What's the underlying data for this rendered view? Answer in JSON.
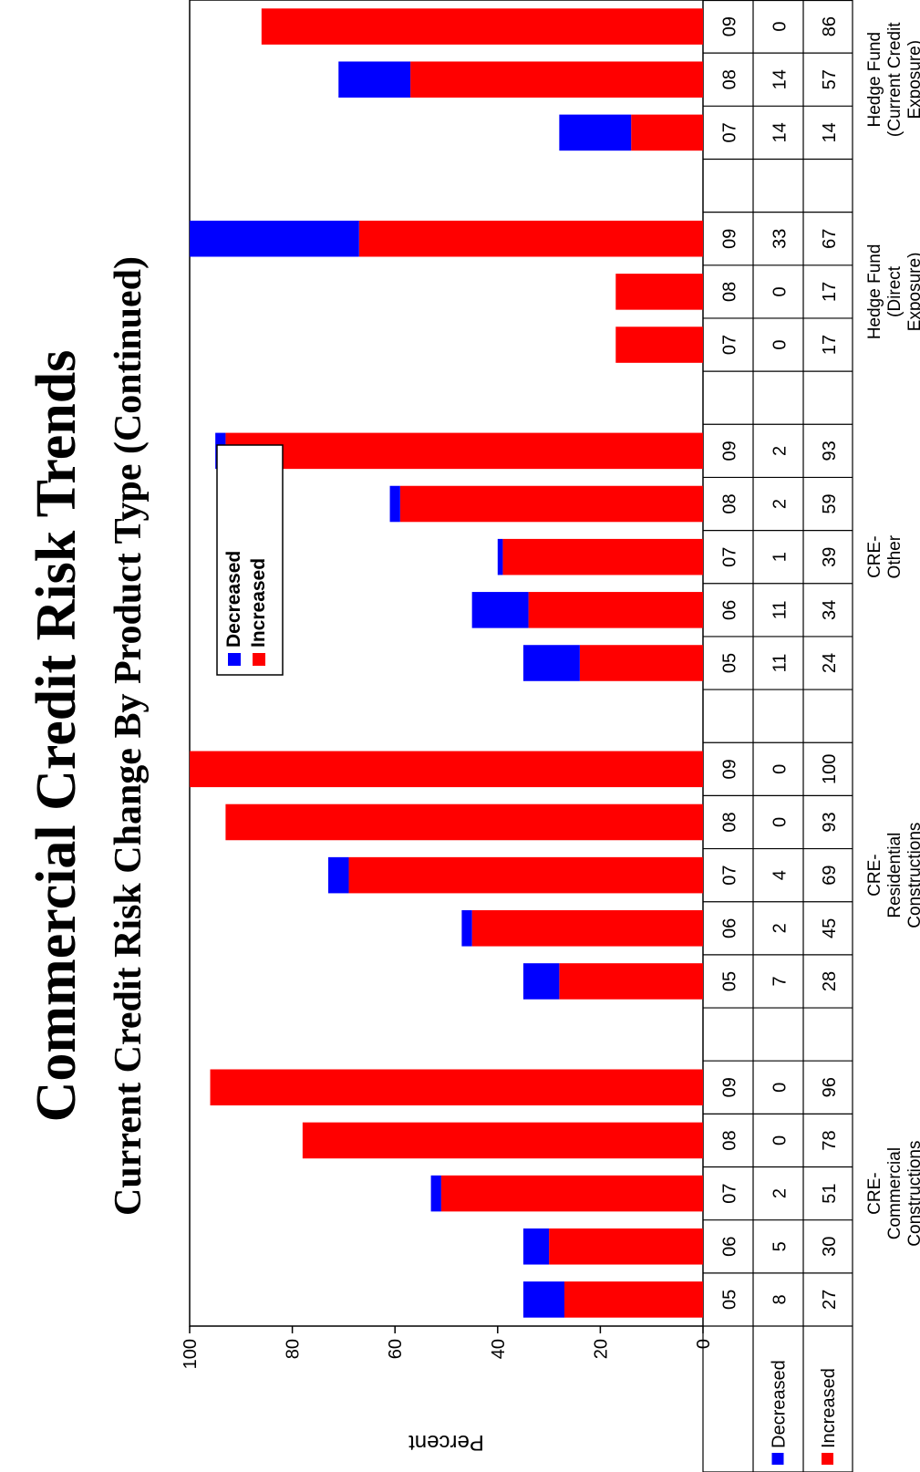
{
  "chart_data": {
    "type": "bar",
    "stacked": true,
    "orientation": "rotated-90-ccw",
    "title": "Commercial Credit Risk Trends",
    "subtitle": "Current Credit Risk Change By Product Type (Continued)",
    "ylabel": "Percent",
    "ylim": [
      0,
      100
    ],
    "yticks": [
      0,
      20,
      40,
      60,
      80,
      100
    ],
    "legend_position": "inside-plot",
    "groups": [
      {
        "label": "CRE-\nCommercial\nConstructions",
        "years": [
          "05",
          "06",
          "07",
          "08",
          "09"
        ],
        "decreased": [
          8,
          5,
          2,
          0,
          0
        ],
        "increased": [
          27,
          30,
          51,
          78,
          96
        ]
      },
      {
        "label": "CRE-\nResidential\nConstructions",
        "years": [
          "05",
          "06",
          "07",
          "08",
          "09"
        ],
        "decreased": [
          7,
          2,
          4,
          0,
          0
        ],
        "increased": [
          28,
          45,
          69,
          93,
          100
        ]
      },
      {
        "label": "CRE-\nOther",
        "years": [
          "05",
          "06",
          "07",
          "08",
          "09"
        ],
        "decreased": [
          11,
          11,
          1,
          2,
          2
        ],
        "increased": [
          24,
          34,
          39,
          59,
          93
        ]
      },
      {
        "label": "Hedge Fund\n(Direct\nExposure)",
        "years": [
          "07",
          "08",
          "09"
        ],
        "decreased": [
          0,
          0,
          33
        ],
        "increased": [
          17,
          17,
          67
        ]
      },
      {
        "label": "Hedge Fund\n(Current Credit\nExposure)",
        "years": [
          "07",
          "08",
          "09"
        ],
        "decreased": [
          14,
          14,
          0
        ],
        "increased": [
          14,
          57,
          86
        ]
      }
    ],
    "series": [
      {
        "name": "Decreased",
        "color": "#0000ff"
      },
      {
        "name": "Increased",
        "color": "#ff0000"
      }
    ]
  }
}
